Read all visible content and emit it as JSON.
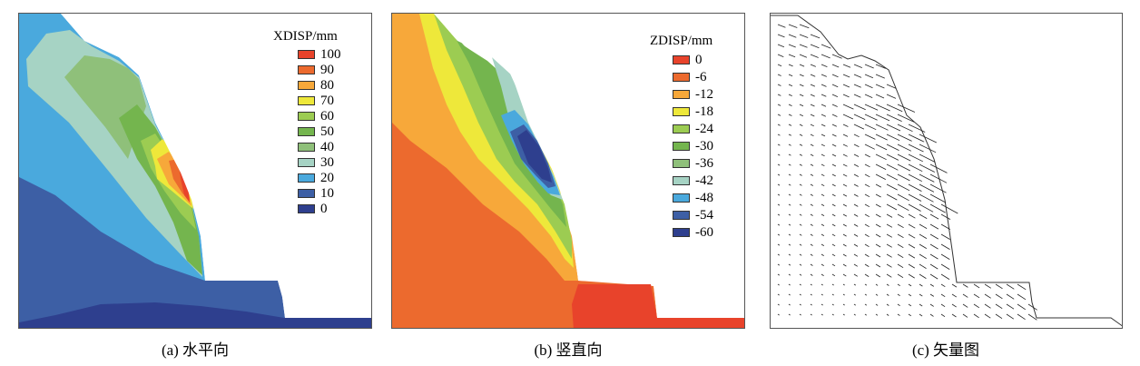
{
  "panels": [
    {
      "caption": "(a) 水平向",
      "legend": {
        "title": "XDISP/mm",
        "ticks": [
          "100",
          "90",
          "80",
          "70",
          "60",
          "50",
          "40",
          "30",
          "20",
          "10",
          "0"
        ],
        "colors": [
          "#e8432b",
          "#ec6a2e",
          "#f7a83a",
          "#eee83a",
          "#9ccc52",
          "#74b54e",
          "#8fc07a",
          "#a6d3c4",
          "#4aa9dd",
          "#3d5fa5",
          "#2e3f8e"
        ]
      }
    },
    {
      "caption": "(b) 竖直向",
      "legend": {
        "title": "ZDISP/mm",
        "ticks": [
          "0",
          "-6",
          "-12",
          "-18",
          "-24",
          "-30",
          "-36",
          "-42",
          "-48",
          "-54",
          "-60"
        ],
        "colors": [
          "#e8432b",
          "#ec6a2e",
          "#f7a83a",
          "#eee83a",
          "#9ccc52",
          "#74b54e",
          "#8fc07a",
          "#a6d3c4",
          "#4aa9dd",
          "#3d5fa5",
          "#2e3f8e"
        ]
      }
    },
    {
      "caption": "(c) 矢量图"
    }
  ],
  "palette": {
    "deep_blue": "#2e3f8e",
    "blue": "#3d5fa5",
    "light_blue": "#4aa9dd",
    "pale_teal": "#a6d3c4",
    "green": "#74b54e",
    "light_green": "#9ccc52",
    "yellow": "#eee83a",
    "orange": "#f7a83a",
    "dark_orange": "#ec6a2e",
    "red": "#e8432b"
  }
}
